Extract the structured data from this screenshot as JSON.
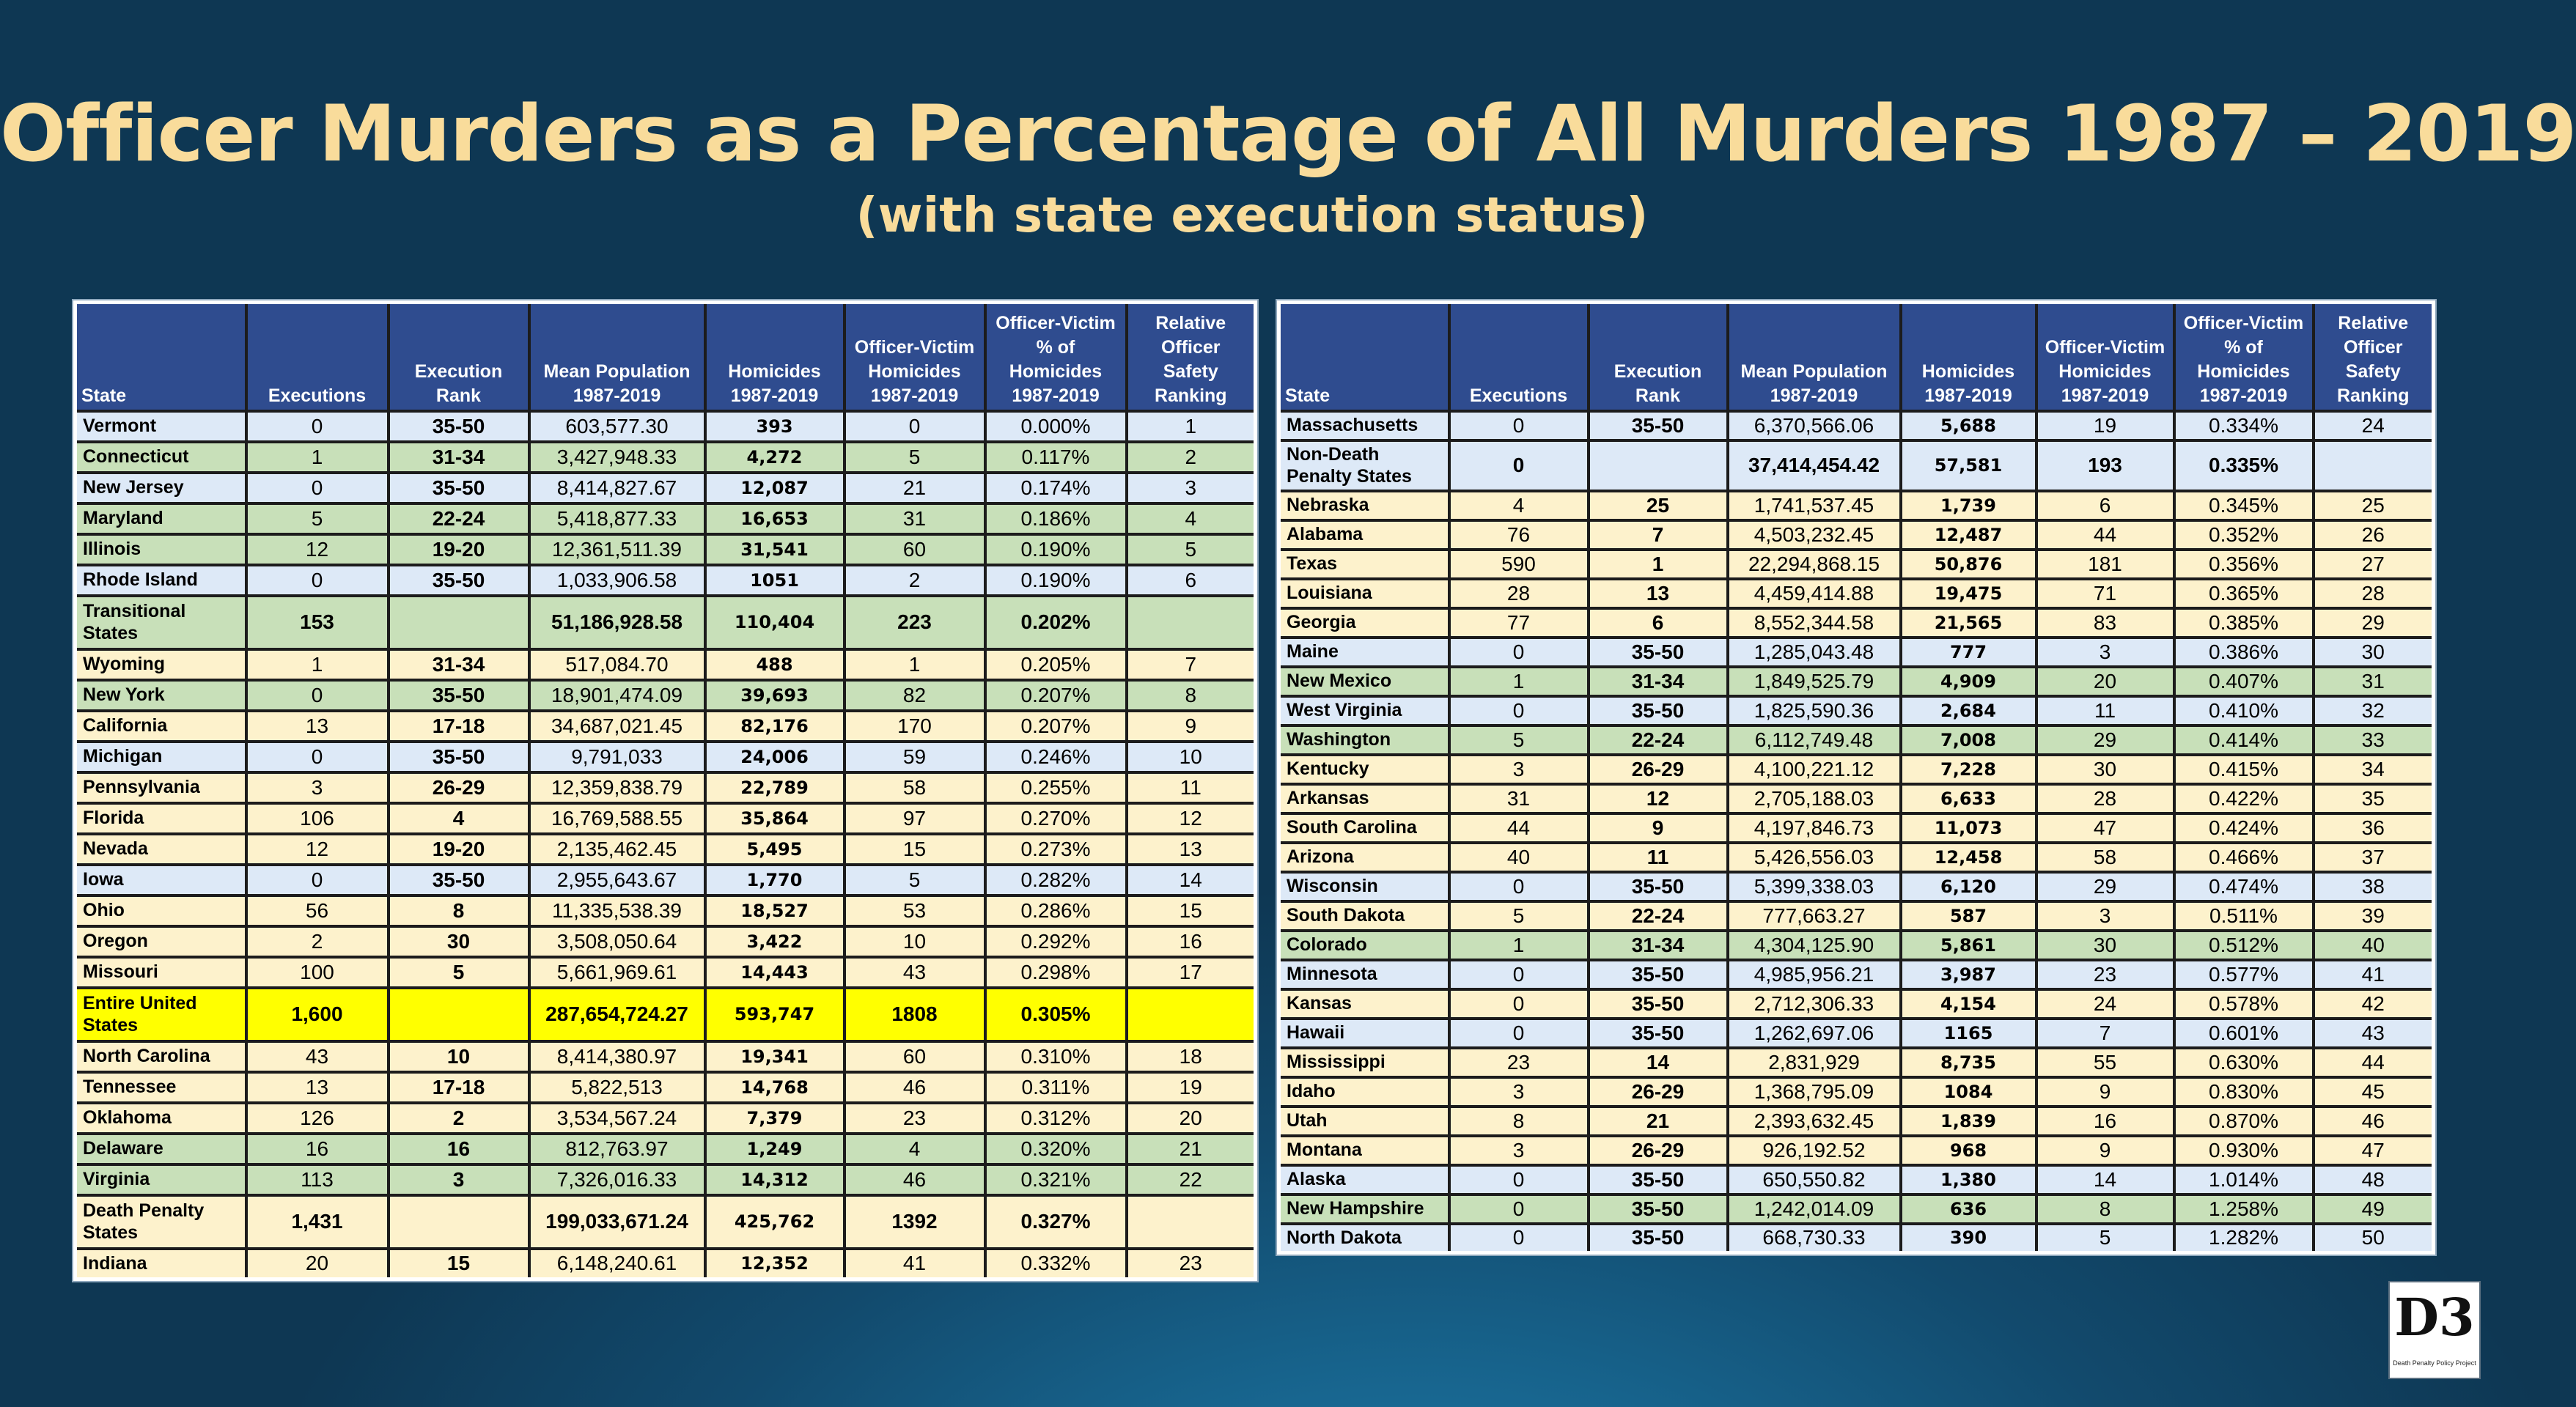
{
  "title": "Officer Murders as a Percentage of All Murders 1987 – 2019",
  "subtitle": "(with state execution status)",
  "headers": {
    "state": "State",
    "executions": "Executions",
    "rank": "Execution Rank",
    "population": "Mean Population 1987-2019",
    "homicides": "Homicides 1987-2019",
    "officer_homicides": "Officer-Victim Homicides 1987-2019",
    "officer_pct": "Officer-Victim % of Homicides 1987-2019",
    "safety_rank": "Relative Officer Safety Ranking"
  },
  "header_right": {
    "officer_pct": "Officer-Victim % of Homicides 1987-2019"
  },
  "colors": {
    "title": "#f9dc9b",
    "header_bg": "#2f4c8f",
    "row_green": "#c8e0b9",
    "row_blue": "#dde9f7",
    "row_cream": "#fdf2cc",
    "row_yellow": "#ffff00"
  },
  "left_rows": [
    {
      "state": "Vermont",
      "executions": "0",
      "rank": "35-50",
      "population": "603,577.30",
      "homicides": "393",
      "officer_homicides": "0",
      "officer_pct": "0.000%",
      "safety_rank": "1",
      "color": "blue"
    },
    {
      "state": "Connecticut",
      "executions": "1",
      "rank": "31-34",
      "population": "3,427,948.33",
      "homicides": "4,272",
      "officer_homicides": "5",
      "officer_pct": "0.117%",
      "safety_rank": "2",
      "color": "green"
    },
    {
      "state": "New Jersey",
      "executions": "0",
      "rank": "35-50",
      "population": "8,414,827.67",
      "homicides": "12,087",
      "officer_homicides": "21",
      "officer_pct": "0.174%",
      "safety_rank": "3",
      "color": "blue"
    },
    {
      "state": "Maryland",
      "executions": "5",
      "rank": "22-24",
      "population": "5,418,877.33",
      "homicides": "16,653",
      "officer_homicides": "31",
      "officer_pct": "0.186%",
      "safety_rank": "4",
      "color": "green"
    },
    {
      "state": "Illinois",
      "executions": "12",
      "rank": "19-20",
      "population": "12,361,511.39",
      "homicides": "31,541",
      "officer_homicides": "60",
      "officer_pct": "0.190%",
      "safety_rank": "5",
      "color": "green"
    },
    {
      "state": "Rhode Island",
      "executions": "0",
      "rank": "35-50",
      "population": "1,033,906.58",
      "homicides": "1051",
      "officer_homicides": "2",
      "officer_pct": "0.190%",
      "safety_rank": "6",
      "color": "blue"
    },
    {
      "state": "Transitional States",
      "executions": "153",
      "rank": "",
      "population": "51,186,928.58",
      "homicides": "110,404",
      "officer_homicides": "223",
      "officer_pct": "0.202%",
      "safety_rank": "",
      "color": "green",
      "summary": true
    },
    {
      "state": "Wyoming",
      "executions": "1",
      "rank": "31-34",
      "population": "517,084.70",
      "homicides": "488",
      "officer_homicides": "1",
      "officer_pct": "0.205%",
      "safety_rank": "7",
      "color": "cream"
    },
    {
      "state": "New York",
      "executions": "0",
      "rank": "35-50",
      "population": "18,901,474.09",
      "homicides": "39,693",
      "officer_homicides": "82",
      "officer_pct": "0.207%",
      "safety_rank": "8",
      "color": "green"
    },
    {
      "state": "California",
      "executions": "13",
      "rank": "17-18",
      "population": "34,687,021.45",
      "homicides": "82,176",
      "officer_homicides": "170",
      "officer_pct": "0.207%",
      "safety_rank": "9",
      "color": "cream"
    },
    {
      "state": "Michigan",
      "executions": "0",
      "rank": "35-50",
      "population": "9,791,033",
      "homicides": "24,006",
      "officer_homicides": "59",
      "officer_pct": "0.246%",
      "safety_rank": "10",
      "color": "blue"
    },
    {
      "state": "Pennsylvania",
      "executions": "3",
      "rank": "26-29",
      "population": "12,359,838.79",
      "homicides": "22,789",
      "officer_homicides": "58",
      "officer_pct": "0.255%",
      "safety_rank": "11",
      "color": "cream"
    },
    {
      "state": "Florida",
      "executions": "106",
      "rank": "4",
      "population": "16,769,588.55",
      "homicides": "35,864",
      "officer_homicides": "97",
      "officer_pct": "0.270%",
      "safety_rank": "12",
      "color": "cream"
    },
    {
      "state": "Nevada",
      "executions": "12",
      "rank": "19-20",
      "population": "2,135,462.45",
      "homicides": "5,495",
      "officer_homicides": "15",
      "officer_pct": "0.273%",
      "safety_rank": "13",
      "color": "cream"
    },
    {
      "state": "Iowa",
      "executions": "0",
      "rank": "35-50",
      "population": "2,955,643.67",
      "homicides": "1,770",
      "officer_homicides": "5",
      "officer_pct": "0.282%",
      "safety_rank": "14",
      "color": "blue"
    },
    {
      "state": "Ohio",
      "executions": "56",
      "rank": "8",
      "population": "11,335,538.39",
      "homicides": "18,527",
      "officer_homicides": "53",
      "officer_pct": "0.286%",
      "safety_rank": "15",
      "color": "cream"
    },
    {
      "state": "Oregon",
      "executions": "2",
      "rank": "30",
      "population": "3,508,050.64",
      "homicides": "3,422",
      "officer_homicides": "10",
      "officer_pct": "0.292%",
      "safety_rank": "16",
      "color": "cream"
    },
    {
      "state": "Missouri",
      "executions": "100",
      "rank": "5",
      "population": "5,661,969.61",
      "homicides": "14,443",
      "officer_homicides": "43",
      "officer_pct": "0.298%",
      "safety_rank": "17",
      "color": "cream"
    },
    {
      "state": "Entire United States",
      "executions": "1,600",
      "rank": "",
      "population": "287,654,724.27",
      "homicides": "593,747",
      "officer_homicides": "1808",
      "officer_pct": "0.305%",
      "safety_rank": "",
      "color": "yellow",
      "summary": true
    },
    {
      "state": "North Carolina",
      "executions": "43",
      "rank": "10",
      "population": "8,414,380.97",
      "homicides": "19,341",
      "officer_homicides": "60",
      "officer_pct": "0.310%",
      "safety_rank": "18",
      "color": "cream"
    },
    {
      "state": "Tennessee",
      "executions": "13",
      "rank": "17-18",
      "population": "5,822,513",
      "homicides": "14,768",
      "officer_homicides": "46",
      "officer_pct": "0.311%",
      "safety_rank": "19",
      "color": "cream"
    },
    {
      "state": "Oklahoma",
      "executions": "126",
      "rank": "2",
      "population": "3,534,567.24",
      "homicides": "7,379",
      "officer_homicides": "23",
      "officer_pct": "0.312%",
      "safety_rank": "20",
      "color": "cream"
    },
    {
      "state": "Delaware",
      "executions": "16",
      "rank": "16",
      "population": "812,763.97",
      "homicides": "1,249",
      "officer_homicides": "4",
      "officer_pct": "0.320%",
      "safety_rank": "21",
      "color": "green"
    },
    {
      "state": "Virginia",
      "executions": "113",
      "rank": "3",
      "population": "7,326,016.33",
      "homicides": "14,312",
      "officer_homicides": "46",
      "officer_pct": "0.321%",
      "safety_rank": "22",
      "color": "green"
    },
    {
      "state": "Death Penalty States",
      "executions": "1,431",
      "rank": "",
      "population": "199,033,671.24",
      "homicides": "425,762",
      "officer_homicides": "1392",
      "officer_pct": "0.327%",
      "safety_rank": "",
      "color": "cream",
      "summary": true
    },
    {
      "state": "Indiana",
      "executions": "20",
      "rank": "15",
      "population": "6,148,240.61",
      "homicides": "12,352",
      "officer_homicides": "41",
      "officer_pct": "0.332%",
      "safety_rank": "23",
      "color": "cream"
    }
  ],
  "right_rows": [
    {
      "state": "Massachusetts",
      "executions": "0",
      "rank": "35-50",
      "population": "6,370,566.06",
      "homicides": "5,688",
      "officer_homicides": "19",
      "officer_pct": "0.334%",
      "safety_rank": "24",
      "color": "blue"
    },
    {
      "state": "Non-Death Penalty States",
      "executions": "0",
      "rank": "",
      "population": "37,414,454.42",
      "homicides": "57,581",
      "officer_homicides": "193",
      "officer_pct": "0.335%",
      "safety_rank": "",
      "color": "blue",
      "summary": true
    },
    {
      "state": "Nebraska",
      "executions": "4",
      "rank": "25",
      "population": "1,741,537.45",
      "homicides": "1,739",
      "officer_homicides": "6",
      "officer_pct": "0.345%",
      "safety_rank": "25",
      "color": "cream"
    },
    {
      "state": "Alabama",
      "executions": "76",
      "rank": "7",
      "population": "4,503,232.45",
      "homicides": "12,487",
      "officer_homicides": "44",
      "officer_pct": "0.352%",
      "safety_rank": "26",
      "color": "cream"
    },
    {
      "state": "Texas",
      "executions": "590",
      "rank": "1",
      "population": "22,294,868.15",
      "homicides": "50,876",
      "officer_homicides": "181",
      "officer_pct": "0.356%",
      "safety_rank": "27",
      "color": "cream"
    },
    {
      "state": "Louisiana",
      "executions": "28",
      "rank": "13",
      "population": "4,459,414.88",
      "homicides": "19,475",
      "officer_homicides": "71",
      "officer_pct": "0.365%",
      "safety_rank": "28",
      "color": "cream"
    },
    {
      "state": "Georgia",
      "executions": "77",
      "rank": "6",
      "population": "8,552,344.58",
      "homicides": "21,565",
      "officer_homicides": "83",
      "officer_pct": "0.385%",
      "safety_rank": "29",
      "color": "cream"
    },
    {
      "state": "Maine",
      "executions": "0",
      "rank": "35-50",
      "population": "1,285,043.48",
      "homicides": "777",
      "officer_homicides": "3",
      "officer_pct": "0.386%",
      "safety_rank": "30",
      "color": "blue"
    },
    {
      "state": "New Mexico",
      "executions": "1",
      "rank": "31-34",
      "population": "1,849,525.79",
      "homicides": "4,909",
      "officer_homicides": "20",
      "officer_pct": "0.407%",
      "safety_rank": "31",
      "color": "green"
    },
    {
      "state": "West Virginia",
      "executions": "0",
      "rank": "35-50",
      "population": "1,825,590.36",
      "homicides": "2,684",
      "officer_homicides": "11",
      "officer_pct": "0.410%",
      "safety_rank": "32",
      "color": "blue"
    },
    {
      "state": "Washington",
      "executions": "5",
      "rank": "22-24",
      "population": "6,112,749.48",
      "homicides": "7,008",
      "officer_homicides": "29",
      "officer_pct": "0.414%",
      "safety_rank": "33",
      "color": "green"
    },
    {
      "state": "Kentucky",
      "executions": "3",
      "rank": "26-29",
      "population": "4,100,221.12",
      "homicides": "7,228",
      "officer_homicides": "30",
      "officer_pct": "0.415%",
      "safety_rank": "34",
      "color": "cream"
    },
    {
      "state": "Arkansas",
      "executions": "31",
      "rank": "12",
      "population": "2,705,188.03",
      "homicides": "6,633",
      "officer_homicides": "28",
      "officer_pct": "0.422%",
      "safety_rank": "35",
      "color": "cream"
    },
    {
      "state": "South Carolina",
      "executions": "44",
      "rank": "9",
      "population": "4,197,846.73",
      "homicides": "11,073",
      "officer_homicides": "47",
      "officer_pct": "0.424%",
      "safety_rank": "36",
      "color": "cream"
    },
    {
      "state": "Arizona",
      "executions": "40",
      "rank": "11",
      "population": "5,426,556.03",
      "homicides": "12,458",
      "officer_homicides": "58",
      "officer_pct": "0.466%",
      "safety_rank": "37",
      "color": "cream"
    },
    {
      "state": "Wisconsin",
      "executions": "0",
      "rank": "35-50",
      "population": "5,399,338.03",
      "homicides": "6,120",
      "officer_homicides": "29",
      "officer_pct": "0.474%",
      "safety_rank": "38",
      "color": "blue"
    },
    {
      "state": "South Dakota",
      "executions": "5",
      "rank": "22-24",
      "population": "777,663.27",
      "homicides": "587",
      "officer_homicides": "3",
      "officer_pct": "0.511%",
      "safety_rank": "39",
      "color": "cream"
    },
    {
      "state": "Colorado",
      "executions": "1",
      "rank": "31-34",
      "population": "4,304,125.90",
      "homicides": "5,861",
      "officer_homicides": "30",
      "officer_pct": "0.512%",
      "safety_rank": "40",
      "color": "green"
    },
    {
      "state": "Minnesota",
      "executions": "0",
      "rank": "35-50",
      "population": "4,985,956.21",
      "homicides": "3,987",
      "officer_homicides": "23",
      "officer_pct": "0.577%",
      "safety_rank": "41",
      "color": "blue"
    },
    {
      "state": "Kansas",
      "executions": "0",
      "rank": "35-50",
      "population": "2,712,306.33",
      "homicides": "4,154",
      "officer_homicides": "24",
      "officer_pct": "0.578%",
      "safety_rank": "42",
      "color": "cream"
    },
    {
      "state": "Hawaii",
      "executions": "0",
      "rank": "35-50",
      "population": "1,262,697.06",
      "homicides": "1165",
      "officer_homicides": "7",
      "officer_pct": "0.601%",
      "safety_rank": "43",
      "color": "blue"
    },
    {
      "state": "Mississippi",
      "executions": "23",
      "rank": "14",
      "population": "2,831,929",
      "homicides": "8,735",
      "officer_homicides": "55",
      "officer_pct": "0.630%",
      "safety_rank": "44",
      "color": "cream"
    },
    {
      "state": "Idaho",
      "executions": "3",
      "rank": "26-29",
      "population": "1,368,795.09",
      "homicides": "1084",
      "officer_homicides": "9",
      "officer_pct": "0.830%",
      "safety_rank": "45",
      "color": "cream"
    },
    {
      "state": "Utah",
      "executions": "8",
      "rank": "21",
      "population": "2,393,632.45",
      "homicides": "1,839",
      "officer_homicides": "16",
      "officer_pct": "0.870%",
      "safety_rank": "46",
      "color": "cream"
    },
    {
      "state": "Montana",
      "executions": "3",
      "rank": "26-29",
      "population": "926,192.52",
      "homicides": "968",
      "officer_homicides": "9",
      "officer_pct": "0.930%",
      "safety_rank": "47",
      "color": "cream"
    },
    {
      "state": "Alaska",
      "executions": "0",
      "rank": "35-50",
      "population": "650,550.82",
      "homicides": "1,380",
      "officer_homicides": "14",
      "officer_pct": "1.014%",
      "safety_rank": "48",
      "color": "blue"
    },
    {
      "state": "New Hampshire",
      "executions": "0",
      "rank": "35-50",
      "population": "1,242,014.09",
      "homicides": "636",
      "officer_homicides": "8",
      "officer_pct": "1.258%",
      "safety_rank": "49",
      "color": "green"
    },
    {
      "state": "North Dakota",
      "executions": "0",
      "rank": "35-50",
      "population": "668,730.33",
      "homicides": "390",
      "officer_homicides": "5",
      "officer_pct": "1.282%",
      "safety_rank": "50",
      "color": "blue"
    }
  ],
  "logo": {
    "mark": "D3",
    "text": "Death Penalty Policy Project"
  }
}
